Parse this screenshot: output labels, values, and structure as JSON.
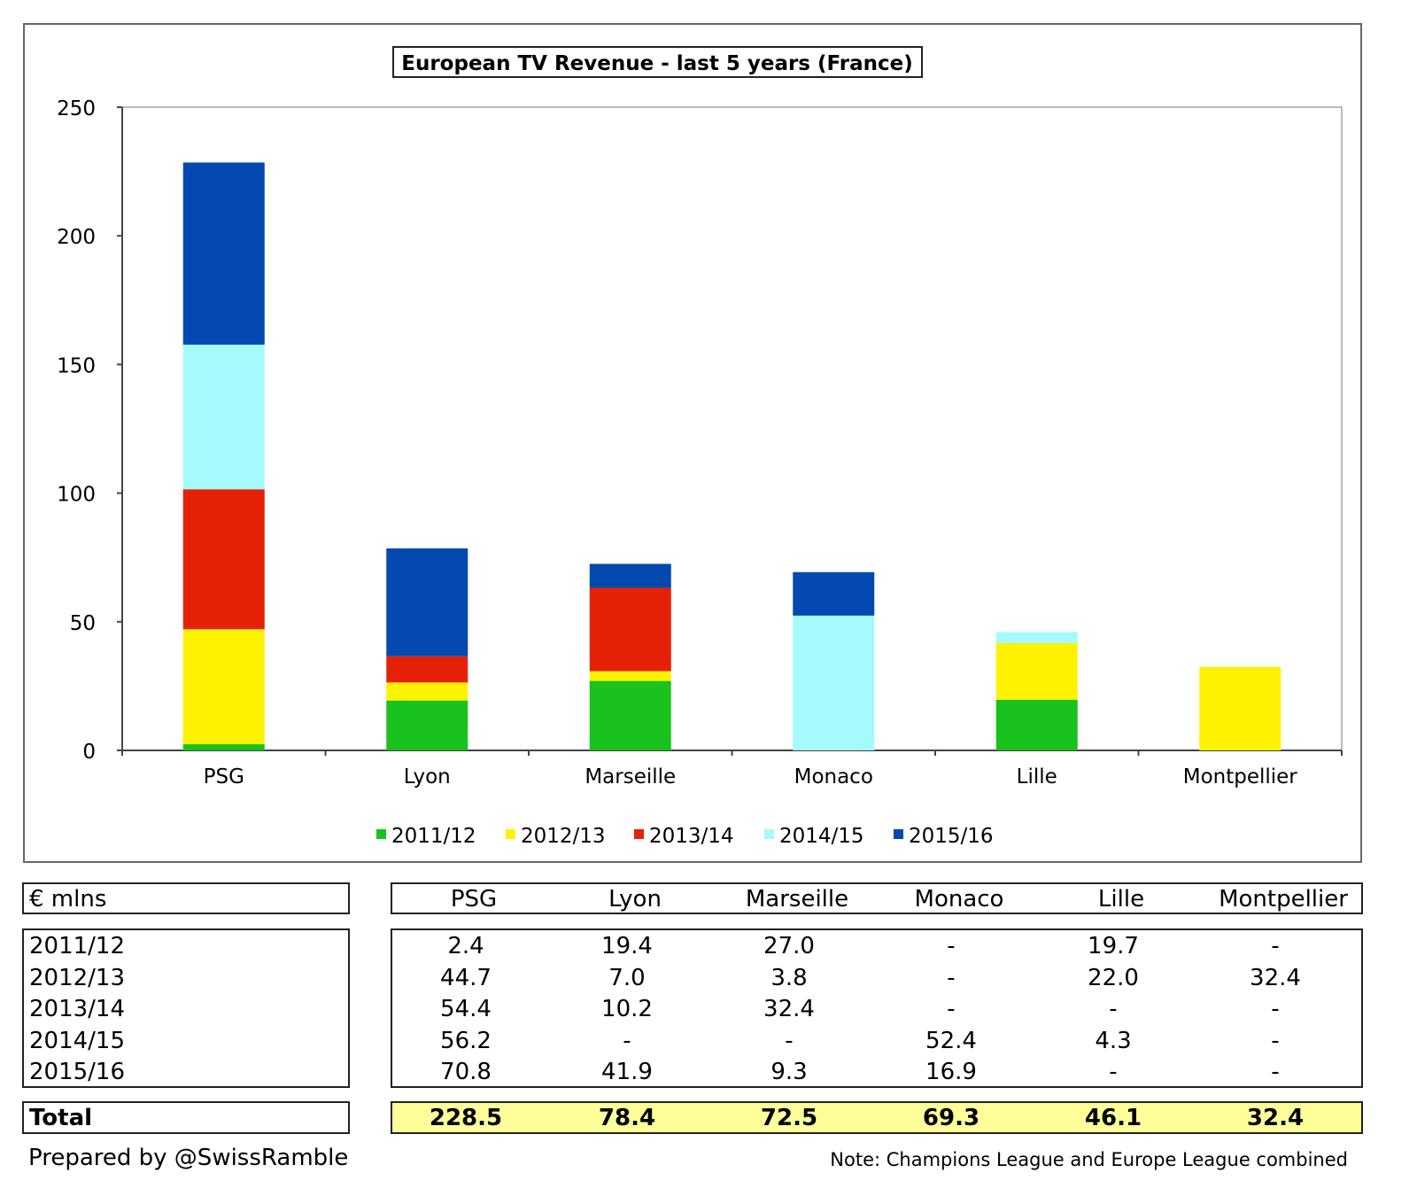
{
  "chart_data": {
    "type": "bar",
    "stacked": true,
    "title": "European TV Revenue - last 5 years (France)",
    "xlabel": "",
    "ylabel": "",
    "ylim": [
      0,
      250
    ],
    "yticks": [
      0,
      50,
      100,
      150,
      200,
      250
    ],
    "grid": false,
    "legend_position": "bottom",
    "categories": [
      "PSG",
      "Lyon",
      "Marseille",
      "Monaco",
      "Lille",
      "Montpellier"
    ],
    "series": [
      {
        "name": "2011/12",
        "color": "#19c21c",
        "values": [
          2.4,
          19.4,
          27.0,
          0,
          19.7,
          0
        ]
      },
      {
        "name": "2012/13",
        "color": "#fff200",
        "values": [
          44.7,
          7.0,
          3.8,
          0,
          22.0,
          32.4
        ]
      },
      {
        "name": "2013/14",
        "color": "#e52207",
        "values": [
          54.4,
          10.2,
          32.4,
          0,
          0,
          0
        ]
      },
      {
        "name": "2014/15",
        "color": "#a5fafd",
        "values": [
          56.2,
          0,
          0,
          52.4,
          4.3,
          0
        ]
      },
      {
        "name": "2015/16",
        "color": "#0349b0",
        "values": [
          70.8,
          41.9,
          9.3,
          16.9,
          0,
          0
        ]
      }
    ]
  },
  "table": {
    "unit_label": "€ mlns",
    "columns": [
      "PSG",
      "Lyon",
      "Marseille",
      "Monaco",
      "Lille",
      "Montpellier"
    ],
    "rows": [
      {
        "label": "2011/12",
        "cells": [
          "2.4",
          "19.4",
          "27.0",
          "-",
          "19.7",
          "-"
        ]
      },
      {
        "label": "2012/13",
        "cells": [
          "44.7",
          "7.0",
          "3.8",
          "-",
          "22.0",
          "32.4"
        ]
      },
      {
        "label": "2013/14",
        "cells": [
          "54.4",
          "10.2",
          "32.4",
          "-",
          "-",
          "-"
        ]
      },
      {
        "label": "2014/15",
        "cells": [
          "56.2",
          "-",
          "-",
          "52.4",
          "4.3",
          "-"
        ]
      },
      {
        "label": "2015/16",
        "cells": [
          "70.8",
          "41.9",
          "9.3",
          "16.9",
          "-",
          "-"
        ]
      }
    ],
    "total": {
      "label": "Total",
      "cells": [
        "228.5",
        "78.4",
        "72.5",
        "69.3",
        "46.1",
        "32.4"
      ],
      "highlight_color": "#ffff99"
    }
  },
  "footer": {
    "credit": "Prepared by @SwissRamble",
    "note": "Note: Champions League and Europe League combined"
  }
}
